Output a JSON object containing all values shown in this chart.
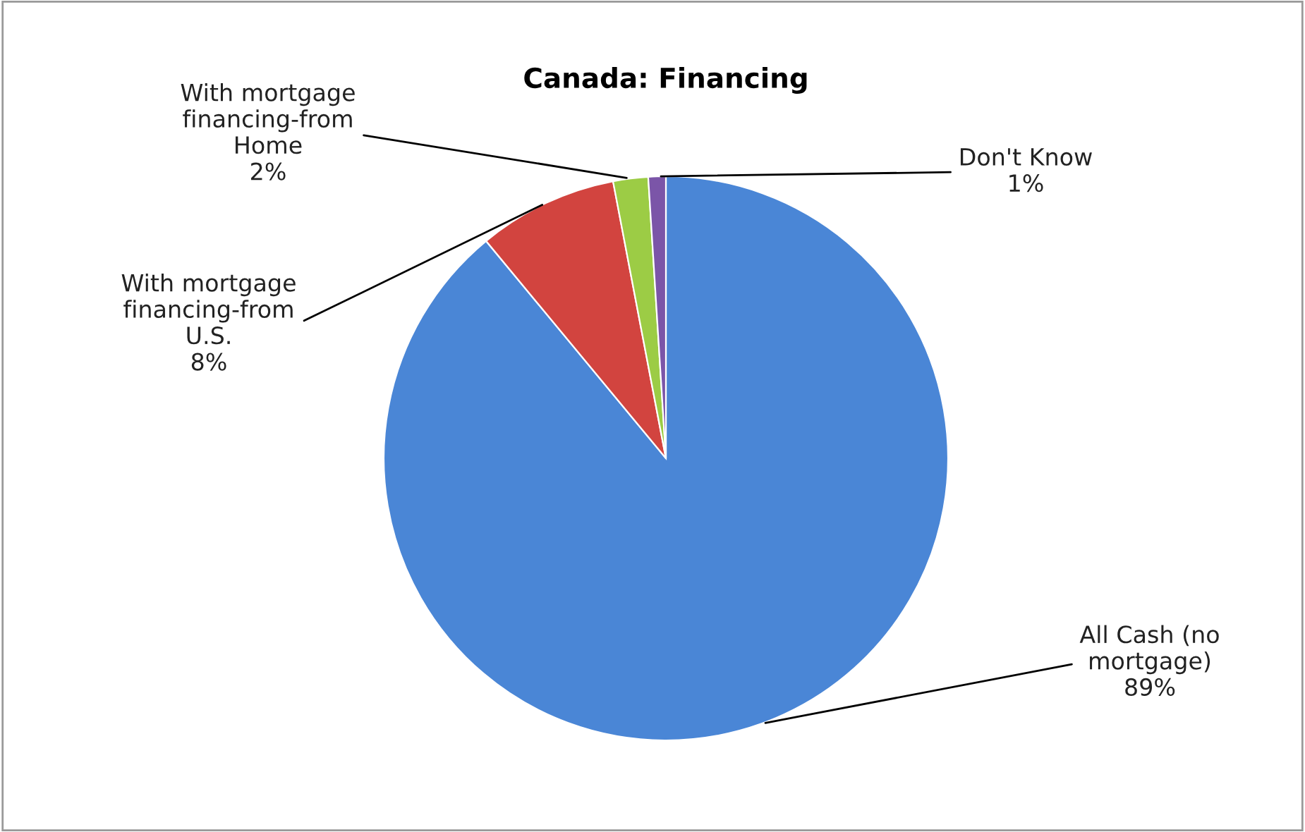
{
  "chart_data": {
    "type": "pie",
    "title": "Canada: Financing",
    "categories": [
      "All Cash (no\nmortgage)",
      "With mortgage\nfinancing-from\nU.S.",
      "With mortgage\nfinancing-from\nHome",
      "Don't Know"
    ],
    "values": [
      89,
      8,
      2,
      1
    ],
    "colors": [
      "#4a86d6",
      "#d2443f",
      "#9ccc45",
      "#7b55a8"
    ],
    "value_labels": [
      "89%",
      "8%",
      "2%",
      "1%"
    ],
    "legend": false
  }
}
